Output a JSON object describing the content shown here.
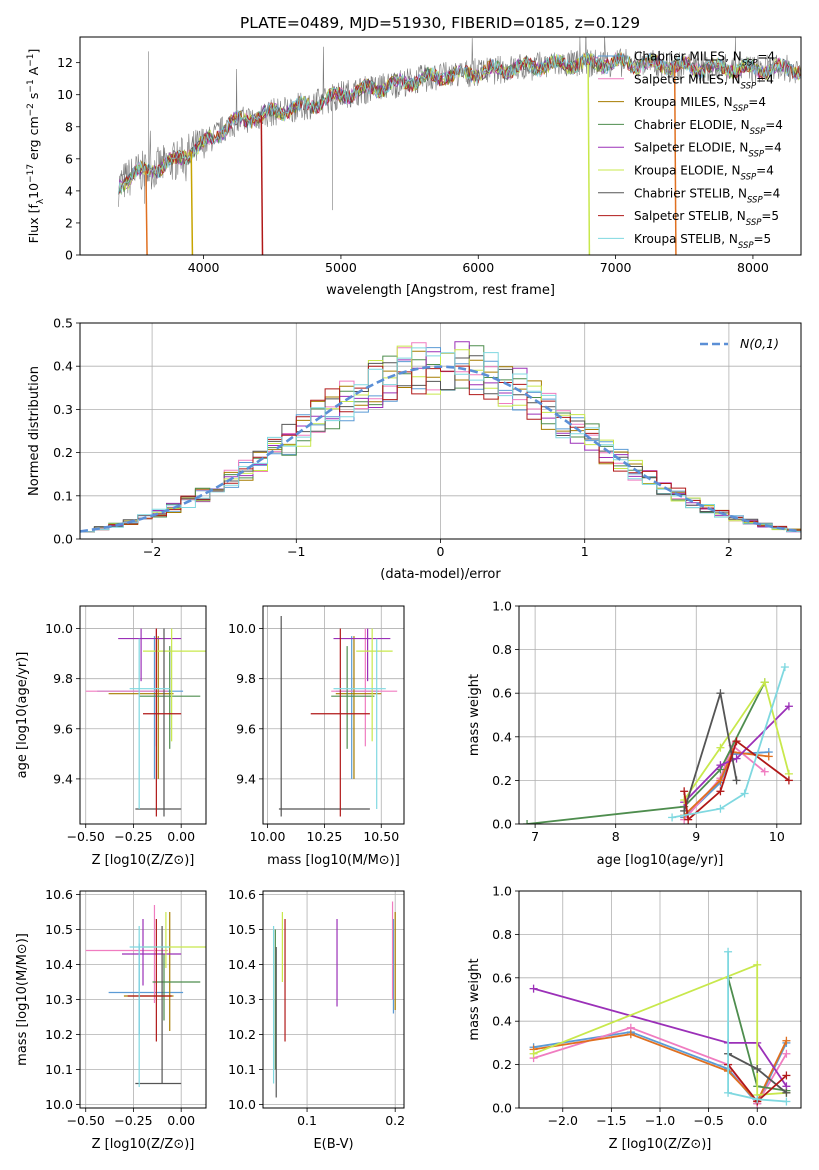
{
  "figure_title": "PLATE=0489, MJD=51930, FIBERID=0185, z=0.129",
  "legend_entries": [
    {
      "label": "Chabrier MILES, N",
      "sub": "SSP",
      "suffix": "=4",
      "color": "#5b9bd5"
    },
    {
      "label": "Salpeter MILES, N",
      "sub": "SSP",
      "suffix": "=4",
      "color": "#f07cc0"
    },
    {
      "label": "Kroupa MILES, N",
      "sub": "SSP",
      "suffix": "=4",
      "color": "#a67c00"
    },
    {
      "label": "Chabrier ELODIE, N",
      "sub": "SSP",
      "suffix": "=4",
      "color": "#4e8d4e"
    },
    {
      "label": "Salpeter ELODIE, N",
      "sub": "SSP",
      "suffix": "=4",
      "color": "#9b30b8"
    },
    {
      "label": "Kroupa ELODIE, N",
      "sub": "SSP",
      "suffix": "=4",
      "color": "#c8e84c"
    },
    {
      "label": "Chabrier STELIB, N",
      "sub": "SSP",
      "suffix": "=4",
      "color": "#555555"
    },
    {
      "label": "Salpeter STELIB, N",
      "sub": "SSP",
      "suffix": "=5",
      "color": "#b01818"
    },
    {
      "label": "Kroupa STELIB, N",
      "sub": "SSP",
      "suffix": "=5",
      "color": "#7fd8e0"
    }
  ],
  "chart_data": [
    {
      "id": "spectrum",
      "type": "line",
      "xlabel": "wavelength [Angstrom, rest frame]",
      "ylabel": "Flux [f_λ10^-17 erg cm^-2 s^-1 A^-1]",
      "xlim": [
        3100,
        8350
      ],
      "ylim": [
        0,
        13.6
      ],
      "xticks": [
        4000,
        5000,
        6000,
        7000,
        8000
      ],
      "yticks": [
        0,
        2,
        4,
        6,
        8,
        10,
        12
      ],
      "data_range_x": [
        3380,
        8350
      ],
      "model_continuum": {
        "x": [
          3380,
          3500,
          3650,
          3800,
          4000,
          4200,
          4500,
          4800,
          5000,
          5300,
          5600,
          6000,
          6300,
          6600,
          7000,
          7300,
          7600,
          8000,
          8350
        ],
        "y": [
          4.3,
          5.1,
          5.4,
          5.9,
          6.9,
          8.2,
          8.9,
          9.4,
          10.0,
          10.5,
          11.0,
          11.4,
          11.7,
          11.9,
          12.0,
          11.9,
          11.7,
          11.6,
          11.6
        ]
      },
      "truncated_models": [
        {
          "color": "#b01818",
          "cut_x": 4420
        },
        {
          "color": "#c8e84c",
          "cut_x": 6800
        },
        {
          "color": "#c6a400",
          "cut_x": 3910
        },
        {
          "color": "#e07020",
          "cut_x": 3580
        },
        {
          "color": "#e07020",
          "cut_x": 7430
        }
      ]
    },
    {
      "id": "residual_histogram",
      "type": "step",
      "xlabel": "(data-model)/error",
      "ylabel": "Normed distribution",
      "xlim": [
        -2.5,
        2.5
      ],
      "ylim": [
        0,
        0.5
      ],
      "xticks": [
        -2,
        -1,
        0,
        1,
        2
      ],
      "yticks": [
        0.0,
        0.1,
        0.2,
        0.3,
        0.4,
        0.5
      ],
      "bin_width": 0.1,
      "reference": {
        "name": "N(0,1)",
        "mu": 0,
        "sigma": 1,
        "color": "#5b8fd6"
      }
    },
    {
      "id": "age_vs_Z",
      "type": "errorbar",
      "xlabel": "Z [log10(Z/Z⊙)]",
      "ylabel": "age  [log10(age/yr)]",
      "xlim": [
        -0.53,
        0.13
      ],
      "ylim": [
        9.22,
        10.09
      ],
      "xticks": [
        -0.5,
        -0.25,
        0.0
      ],
      "yticks": [
        9.4,
        9.6,
        9.8,
        10.0
      ],
      "points": [
        {
          "color": "#5b9bd5",
          "x": -0.14,
          "xlo": -0.44,
          "xhi": 0.01,
          "y": 9.75,
          "ylo": 9.4,
          "yhi": 9.97
        },
        {
          "color": "#f07cc0",
          "x": -0.13,
          "xlo": -0.5,
          "xhi": -0.07,
          "y": 9.75,
          "ylo": 9.53,
          "yhi": 10.0
        },
        {
          "color": "#a67c00",
          "x": -0.12,
          "xlo": -0.38,
          "xhi": -0.04,
          "y": 9.74,
          "ylo": 9.4,
          "yhi": 9.97
        },
        {
          "color": "#4e8d4e",
          "x": -0.06,
          "xlo": -0.22,
          "xhi": 0.1,
          "y": 9.73,
          "ylo": 9.52,
          "yhi": 9.93
        },
        {
          "color": "#9b30b8",
          "x": -0.21,
          "xlo": -0.33,
          "xhi": 0.0,
          "y": 9.96,
          "ylo": 9.79,
          "yhi": 10.0
        },
        {
          "color": "#c8e84c",
          "x": -0.05,
          "xlo": -0.2,
          "xhi": 0.13,
          "y": 9.91,
          "ylo": 9.55,
          "yhi": 10.0
        },
        {
          "color": "#555555",
          "x": -0.09,
          "xlo": -0.24,
          "xhi": -0.0,
          "y": 9.28,
          "ylo": 9.25,
          "yhi": 10.0
        },
        {
          "color": "#b01818",
          "x": -0.13,
          "xlo": -0.2,
          "xhi": -0.0,
          "y": 9.66,
          "ylo": 9.25,
          "yhi": 10.0
        },
        {
          "color": "#7fd8e0",
          "x": -0.22,
          "xlo": -0.27,
          "xhi": -0.06,
          "y": 9.76,
          "ylo": 9.28,
          "yhi": 9.96
        }
      ]
    },
    {
      "id": "age_vs_mass",
      "type": "errorbar",
      "xlabel": "mass [log10(M/M⊙)]",
      "ylabel": "",
      "xlim": [
        9.98,
        10.6
      ],
      "ylim": [
        9.22,
        10.09
      ],
      "xticks": [
        10.0,
        10.25,
        10.5
      ],
      "yticks": [
        9.4,
        9.6,
        9.8,
        10.0
      ],
      "points": [
        {
          "color": "#5b9bd5",
          "x": 10.37,
          "xlo": 10.3,
          "xhi": 10.49,
          "y": 9.75,
          "ylo": 9.4,
          "yhi": 9.97
        },
        {
          "color": "#f07cc0",
          "x": 10.43,
          "xlo": 10.28,
          "xhi": 10.57,
          "y": 9.75,
          "ylo": 9.53,
          "yhi": 10.0
        },
        {
          "color": "#a67c00",
          "x": 10.38,
          "xlo": 10.3,
          "xhi": 10.5,
          "y": 9.74,
          "ylo": 9.4,
          "yhi": 9.97
        },
        {
          "color": "#4e8d4e",
          "x": 10.35,
          "xlo": 10.28,
          "xhi": 10.47,
          "y": 9.73,
          "ylo": 9.52,
          "yhi": 9.93
        },
        {
          "color": "#9b30b8",
          "x": 10.44,
          "xlo": 10.29,
          "xhi": 10.54,
          "y": 9.96,
          "ylo": 9.79,
          "yhi": 10.0
        },
        {
          "color": "#c8e84c",
          "x": 10.46,
          "xlo": 10.39,
          "xhi": 10.55,
          "y": 9.91,
          "ylo": 9.55,
          "yhi": 10.0
        },
        {
          "color": "#555555",
          "x": 10.06,
          "xlo": 10.05,
          "xhi": 10.45,
          "y": 9.28,
          "ylo": 9.25,
          "yhi": 10.05
        },
        {
          "color": "#b01818",
          "x": 10.32,
          "xlo": 10.19,
          "xhi": 10.45,
          "y": 9.66,
          "ylo": 9.25,
          "yhi": 10.0
        },
        {
          "color": "#7fd8e0",
          "x": 10.48,
          "xlo": 10.29,
          "xhi": 10.52,
          "y": 9.76,
          "ylo": 9.28,
          "yhi": 9.96
        }
      ]
    },
    {
      "id": "massweight_vs_age",
      "type": "line",
      "xlabel": "age  [log10(age/yr)]",
      "ylabel": "mass weight",
      "xlim": [
        6.8,
        10.3
      ],
      "ylim": [
        0,
        1.0
      ],
      "xticks": [
        7,
        8,
        9,
        10
      ],
      "yticks": [
        0.0,
        0.2,
        0.4,
        0.6,
        0.8,
        1.0
      ],
      "series": [
        {
          "color": "#5b9bd5",
          "x": [
            8.85,
            9.3,
            9.45,
            9.9
          ],
          "y": [
            0.03,
            0.19,
            0.32,
            0.33
          ]
        },
        {
          "color": "#f07cc0",
          "x": [
            8.85,
            9.3,
            9.45,
            9.85
          ],
          "y": [
            0.02,
            0.21,
            0.36,
            0.24
          ]
        },
        {
          "color": "#e07020",
          "x": [
            8.85,
            9.3,
            9.45,
            9.9
          ],
          "y": [
            0.04,
            0.2,
            0.33,
            0.31
          ]
        },
        {
          "color": "#4e8d4e",
          "x": [
            6.9,
            8.85,
            9.3,
            9.85
          ],
          "y": [
            0.0,
            0.08,
            0.25,
            0.65
          ]
        },
        {
          "color": "#9b30b8",
          "x": [
            8.85,
            9.3,
            9.5,
            10.15
          ],
          "y": [
            0.1,
            0.27,
            0.3,
            0.54
          ]
        },
        {
          "color": "#c8e84c",
          "x": [
            8.85,
            9.3,
            9.85,
            10.15
          ],
          "y": [
            0.11,
            0.35,
            0.65,
            0.23
          ]
        },
        {
          "color": "#555555",
          "x": [
            8.85,
            9.3,
            9.5
          ],
          "y": [
            0.06,
            0.6,
            0.2
          ]
        },
        {
          "color": "#b01818",
          "x": [
            8.85,
            8.9,
            9.3,
            9.5,
            10.15
          ],
          "y": [
            0.15,
            0.02,
            0.15,
            0.38,
            0.2
          ]
        },
        {
          "color": "#7fd8e0",
          "x": [
            8.7,
            9.3,
            9.6,
            10.1
          ],
          "y": [
            0.03,
            0.07,
            0.14,
            0.72
          ]
        }
      ]
    },
    {
      "id": "mass_vs_Z",
      "type": "errorbar",
      "xlabel": "Z [log10(Z/Z⊙)]",
      "ylabel": "mass [log10(M/M⊙)]",
      "xlim": [
        -0.53,
        0.13
      ],
      "ylim": [
        9.99,
        10.61
      ],
      "xticks": [
        -0.5,
        -0.25,
        0.0
      ],
      "yticks": [
        10.0,
        10.1,
        10.2,
        10.3,
        10.4,
        10.5,
        10.6
      ],
      "points": [
        {
          "color": "#5b9bd5",
          "x": -0.22,
          "xlo": -0.38,
          "xhi": 0.01,
          "y": 10.32,
          "ylo": 10.2,
          "yhi": 10.46
        },
        {
          "color": "#f07cc0",
          "x": -0.14,
          "xlo": -0.5,
          "xhi": -0.07,
          "y": 10.44,
          "ylo": 10.29,
          "yhi": 10.57
        },
        {
          "color": "#a67c00",
          "x": -0.06,
          "xlo": -0.3,
          "xhi": -0.04,
          "y": 10.31,
          "ylo": 10.21,
          "yhi": 10.55
        },
        {
          "color": "#4e8d4e",
          "x": -0.09,
          "xlo": -0.15,
          "xhi": 0.1,
          "y": 10.35,
          "ylo": 10.24,
          "yhi": 10.43
        },
        {
          "color": "#9b30b8",
          "x": -0.2,
          "xlo": -0.31,
          "xhi": 0.0,
          "y": 10.43,
          "ylo": 10.34,
          "yhi": 10.53
        },
        {
          "color": "#c8e84c",
          "x": -0.08,
          "xlo": -0.2,
          "xhi": 0.13,
          "y": 10.45,
          "ylo": 10.39,
          "yhi": 10.55
        },
        {
          "color": "#555555",
          "x": -0.1,
          "xlo": -0.24,
          "xhi": -0.0,
          "y": 10.06,
          "ylo": 10.06,
          "yhi": 10.51
        },
        {
          "color": "#b01818",
          "x": -0.13,
          "xlo": -0.28,
          "xhi": -0.05,
          "y": 10.31,
          "ylo": 10.18,
          "yhi": 10.53
        },
        {
          "color": "#7fd8e0",
          "x": -0.22,
          "xlo": -0.27,
          "xhi": -0.06,
          "y": 10.45,
          "ylo": 10.05,
          "yhi": 10.51
        }
      ]
    },
    {
      "id": "mass_vs_ebv",
      "type": "errorbar",
      "xlabel": "E(B-V)",
      "ylabel": "",
      "xlim": [
        0.05,
        0.21
      ],
      "ylim": [
        9.99,
        10.61
      ],
      "xticks": [
        0.1,
        0.2
      ],
      "yticks": [
        10.0,
        10.1,
        10.2,
        10.3,
        10.4,
        10.5,
        10.6
      ],
      "points": [
        {
          "color": "#5b9bd5",
          "x": 0.198,
          "xlo": 0.198,
          "xhi": 0.198,
          "y": 10.4,
          "ylo": 10.26,
          "yhi": 10.53
        },
        {
          "color": "#f07cc0",
          "x": 0.197,
          "xlo": 0.197,
          "xhi": 0.197,
          "y": 10.43,
          "ylo": 10.3,
          "yhi": 10.58
        },
        {
          "color": "#a67c00",
          "x": 0.2,
          "xlo": 0.2,
          "xhi": 0.2,
          "y": 10.4,
          "ylo": 10.27,
          "yhi": 10.55
        },
        {
          "color": "#4e8d4e",
          "x": 0.064,
          "xlo": 0.064,
          "xhi": 0.064,
          "y": 10.3,
          "ylo": 10.1,
          "yhi": 10.5
        },
        {
          "color": "#9b30b8",
          "x": 0.134,
          "xlo": 0.134,
          "xhi": 0.134,
          "y": 10.4,
          "ylo": 10.28,
          "yhi": 10.53
        },
        {
          "color": "#c8e84c",
          "x": 0.072,
          "xlo": 0.072,
          "xhi": 0.072,
          "y": 10.45,
          "ylo": 10.35,
          "yhi": 10.55
        },
        {
          "color": "#555555",
          "x": 0.065,
          "xlo": 0.065,
          "xhi": 0.065,
          "y": 10.25,
          "ylo": 10.02,
          "yhi": 10.45
        },
        {
          "color": "#b01818",
          "x": 0.075,
          "xlo": 0.075,
          "xhi": 0.075,
          "y": 10.35,
          "ylo": 10.18,
          "yhi": 10.53
        },
        {
          "color": "#7fd8e0",
          "x": 0.062,
          "xlo": 0.062,
          "xhi": 0.062,
          "y": 10.3,
          "ylo": 10.06,
          "yhi": 10.51
        }
      ]
    },
    {
      "id": "massweight_vs_Z",
      "type": "line",
      "xlabel": "Z [log10(Z/Z⊙)]",
      "ylabel": "mass weight",
      "xlim": [
        -2.45,
        0.45
      ],
      "ylim": [
        0,
        1.0
      ],
      "xticks": [
        -2.0,
        -1.5,
        -1.0,
        -0.5,
        0.0
      ],
      "yticks": [
        0.0,
        0.2,
        0.4,
        0.6,
        0.8,
        1.0
      ],
      "series": [
        {
          "color": "#5b9bd5",
          "x": [
            -2.3,
            -1.3,
            -0.3,
            0.0,
            0.3
          ],
          "y": [
            0.28,
            0.35,
            0.18,
            0.02,
            0.3
          ]
        },
        {
          "color": "#f07cc0",
          "x": [
            -2.3,
            -1.3,
            -0.3,
            0.0,
            0.3
          ],
          "y": [
            0.23,
            0.37,
            0.2,
            0.02,
            0.25
          ]
        },
        {
          "color": "#e07020",
          "x": [
            -2.3,
            -1.3,
            -0.3,
            0.0,
            0.3
          ],
          "y": [
            0.27,
            0.34,
            0.17,
            0.03,
            0.31
          ]
        },
        {
          "color": "#4e8d4e",
          "x": [
            -0.3,
            0.0,
            0.3
          ],
          "y": [
            0.6,
            0.1,
            0.08
          ]
        },
        {
          "color": "#9b30b8",
          "x": [
            -2.3,
            -0.3,
            0.0,
            0.3
          ],
          "y": [
            0.55,
            0.3,
            0.3,
            0.1
          ]
        },
        {
          "color": "#c8e84c",
          "x": [
            -2.3,
            0.0,
            0.0,
            0.3
          ],
          "y": [
            0.25,
            0.66,
            0.06,
            0.07
          ]
        },
        {
          "color": "#555555",
          "x": [
            -0.3,
            0.0,
            0.3
          ],
          "y": [
            0.25,
            0.18,
            0.07
          ]
        },
        {
          "color": "#b01818",
          "x": [
            -0.3,
            0.0,
            0.3
          ],
          "y": [
            0.2,
            0.03,
            0.15
          ]
        },
        {
          "color": "#7fd8e0",
          "x": [
            -0.3,
            -0.3,
            0.0,
            0.3
          ],
          "y": [
            0.72,
            0.07,
            0.04,
            0.03
          ]
        }
      ]
    }
  ]
}
